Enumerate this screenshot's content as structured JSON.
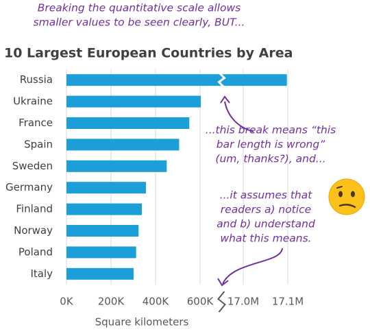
{
  "chart_data": {
    "type": "bar",
    "orientation": "horizontal",
    "title": "10 Largest European Countries by Area",
    "x_label": "Square kilometers",
    "categories": [
      "Russia",
      "Ukraine",
      "France",
      "Spain",
      "Sweden",
      "Germany",
      "Finland",
      "Norway",
      "Poland",
      "Italy"
    ],
    "values": [
      17098000,
      603550,
      551695,
      505990,
      450295,
      357022,
      338424,
      323802,
      312696,
      301340
    ],
    "color": "#1c9fd8",
    "xlim": [
      0,
      17100000
    ],
    "xbreak": [
      600000,
      17000000
    ],
    "xticks": [
      {
        "value": 0,
        "label": "0K"
      },
      {
        "value": 200000,
        "label": "200K"
      },
      {
        "value": 400000,
        "label": "400K"
      },
      {
        "value": 600000,
        "label": "600K"
      },
      {
        "value": 17000000,
        "label": "17.0M"
      },
      {
        "value": 17100000,
        "label": "17.1M"
      }
    ],
    "grid": true,
    "annotations": [
      [
        "Breaking the quantitative scale allows",
        "smaller values to be seen clearly, BUT..."
      ],
      [
        "...this break means “this",
        "bar length is wrong”",
        "(um, thanks?), and..."
      ],
      [
        "...it assumes that",
        "readers a) notice",
        "and b) understand",
        "what this means."
      ]
    ]
  }
}
